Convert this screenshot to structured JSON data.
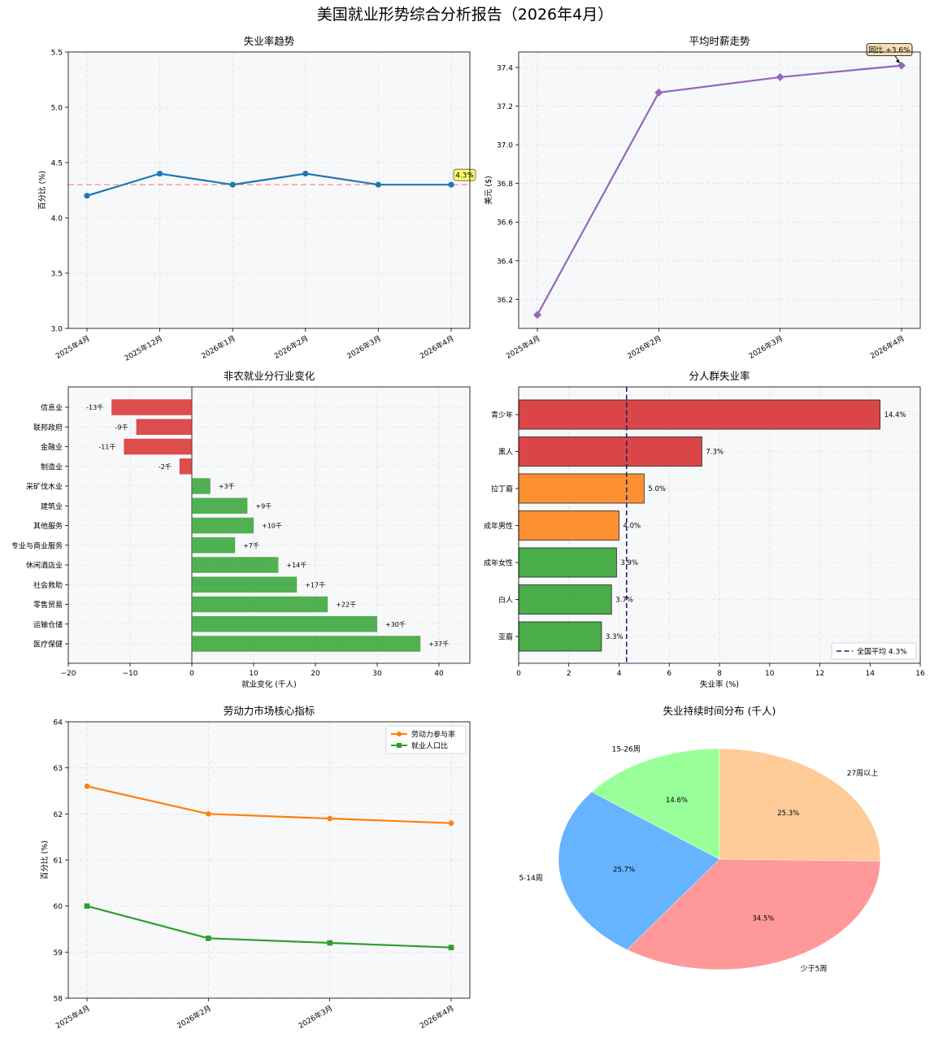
{
  "title": "美国就业形势综合分析报告（2026年4月）",
  "chart_data": [
    {
      "type": "line",
      "title": "失业率趋势",
      "ylabel": "百分比 (%)",
      "categories": [
        "2025年4月",
        "2025年12月",
        "2026年1月",
        "2026年2月",
        "2026年3月",
        "2026年4月"
      ],
      "values": [
        4.2,
        4.4,
        4.3,
        4.4,
        4.3,
        4.3
      ],
      "ylim": [
        3.0,
        5.5
      ],
      "yticks": [
        "3.0",
        "3.5",
        "4.0",
        "4.5",
        "5.0",
        "5.5"
      ],
      "reference_line": 4.3,
      "annotation": "4.3%",
      "color": "#1f77b4",
      "reference_color": "#ff7f7f",
      "grid": true
    },
    {
      "type": "line",
      "title": "平均时薪走势",
      "ylabel": "美元 ($)",
      "categories": [
        "2025年4月",
        "2026年2月",
        "2026年3月",
        "2026年4月"
      ],
      "values": [
        36.12,
        37.27,
        37.35,
        37.41
      ],
      "ylim": [
        36.05,
        37.48
      ],
      "yticks": [
        "36.2",
        "36.4",
        "36.6",
        "36.8",
        "37.0",
        "37.2",
        "37.4"
      ],
      "annotation": "同比 +3.6%",
      "color": "#9467bd",
      "grid": true
    },
    {
      "type": "bar",
      "orientation": "horizontal",
      "title": "非农就业分行业变化",
      "xlabel": "就业变化 (千人)",
      "categories": [
        "信息业",
        "联邦政府",
        "金融业",
        "制造业",
        "采矿伐木业",
        "建筑业",
        "其他服务",
        "专业与商业服务",
        "休闲酒店业",
        "社会救助",
        "零售贸易",
        "运输仓储",
        "医疗保健"
      ],
      "values": [
        -13,
        -9,
        -11,
        -2,
        3,
        9,
        10,
        7,
        14,
        17,
        22,
        30,
        37
      ],
      "labels": [
        "-13千",
        "-9千",
        "-11千",
        "-2千",
        "+3千",
        "+9千",
        "+10千",
        "+7千",
        "+14千",
        "+17千",
        "+22千",
        "+30千",
        "+37千"
      ],
      "xlim": [
        -20,
        45
      ],
      "xticks": [
        "−20",
        "−10",
        "0",
        "10",
        "20",
        "30",
        "40"
      ],
      "positive_color": "#2ca02c",
      "negative_color": "#d62728",
      "grid": true
    },
    {
      "type": "bar",
      "orientation": "horizontal",
      "title": "分人群失业率",
      "xlabel": "失业率 (%)",
      "categories": [
        "青少年",
        "黑人",
        "拉丁裔",
        "成年男性",
        "成年女性",
        "白人",
        "亚裔"
      ],
      "values": [
        14.4,
        7.3,
        5.0,
        4.0,
        3.9,
        3.7,
        3.3
      ],
      "labels": [
        "14.4%",
        "7.3%",
        "5.0%",
        "4.0%",
        "3.9%",
        "3.7%",
        "3.3%"
      ],
      "colors": [
        "#d62728",
        "#d62728",
        "#ff7f0e",
        "#ff7f0e",
        "#2ca02c",
        "#2ca02c",
        "#2ca02c"
      ],
      "xlim": [
        0,
        16
      ],
      "xticks": [
        "0",
        "2",
        "4",
        "6",
        "8",
        "10",
        "12",
        "14",
        "16"
      ],
      "reference_line": 4.3,
      "legend": [
        "全国平均 4.3%"
      ],
      "legend_position": "bottom-right",
      "grid": true
    },
    {
      "type": "line",
      "title": "劳动力市场核心指标",
      "ylabel": "百分比 (%)",
      "categories": [
        "2025年4月",
        "2026年2月",
        "2026年3月",
        "2026年4月"
      ],
      "series": [
        {
          "name": "劳动力参与率",
          "values": [
            62.6,
            62.0,
            61.9,
            61.8
          ],
          "color": "#ff7f0e"
        },
        {
          "name": "就业人口比",
          "values": [
            60.0,
            59.3,
            59.2,
            59.1
          ],
          "color": "#2ca02c"
        }
      ],
      "ylim": [
        58,
        64
      ],
      "yticks": [
        "58",
        "59",
        "60",
        "61",
        "62",
        "63",
        "64"
      ],
      "legend_position": "top-right",
      "grid": true
    },
    {
      "type": "pie",
      "title": "失业持续时间分布 (千人)",
      "labels": [
        "27周以上",
        "少于5周",
        "5-14周",
        "15-26周"
      ],
      "values": [
        25.3,
        34.5,
        25.7,
        14.6
      ],
      "pct_labels": [
        "25.3%",
        "34.5%",
        "25.7%",
        "14.6%"
      ],
      "colors": [
        "#ffcc99",
        "#ff9999",
        "#66b3ff",
        "#99ff99"
      ]
    }
  ]
}
